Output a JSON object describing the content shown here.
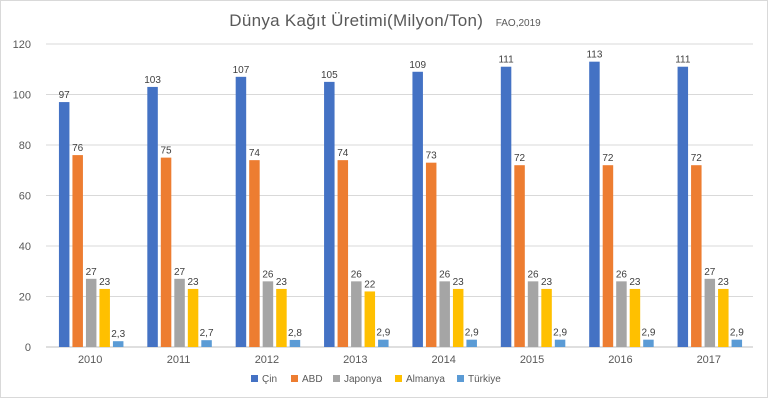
{
  "chart_data": {
    "type": "bar",
    "title": "Dünya Kağıt Üretimi(Milyon/Ton)",
    "subtitle": "FAO,2019",
    "xlabel": "",
    "ylabel": "",
    "ylim": [
      0,
      120
    ],
    "yticks": [
      0,
      20,
      40,
      60,
      80,
      100,
      120
    ],
    "grid": true,
    "legend_position": "bottom",
    "categories": [
      "2010",
      "2011",
      "2012",
      "2013",
      "2014",
      "2015",
      "2016",
      "2017"
    ],
    "series": [
      {
        "name": "Çin",
        "color": "#4472c4",
        "values": [
          97,
          103,
          107,
          105,
          109,
          111,
          113,
          111
        ],
        "labels": [
          "97",
          "103",
          "107",
          "105",
          "109",
          "111",
          "113",
          "111"
        ]
      },
      {
        "name": "ABD",
        "color": "#ed7d31",
        "values": [
          76,
          75,
          74,
          74,
          73,
          72,
          72,
          72
        ],
        "labels": [
          "76",
          "75",
          "74",
          "74",
          "73",
          "72",
          "72",
          "72"
        ]
      },
      {
        "name": "Japonya",
        "color": "#a5a5a5",
        "values": [
          27,
          27,
          26,
          26,
          26,
          26,
          26,
          27
        ],
        "labels": [
          "27",
          "27",
          "26",
          "26",
          "26",
          "26",
          "26",
          "27"
        ]
      },
      {
        "name": "Almanya",
        "color": "#ffc000",
        "values": [
          23,
          23,
          23,
          22,
          23,
          23,
          23,
          23
        ],
        "labels": [
          "23",
          "23",
          "23",
          "22",
          "23",
          "23",
          "23",
          "23"
        ]
      },
      {
        "name": "Türkiye",
        "color": "#5b9bd5",
        "values": [
          2.3,
          2.7,
          2.8,
          2.9,
          2.9,
          2.9,
          2.9,
          2.9
        ],
        "labels": [
          "2,3",
          "2,7",
          "2,8",
          "2,9",
          "2,9",
          "2,9",
          "2,9",
          "2,9"
        ]
      }
    ]
  }
}
